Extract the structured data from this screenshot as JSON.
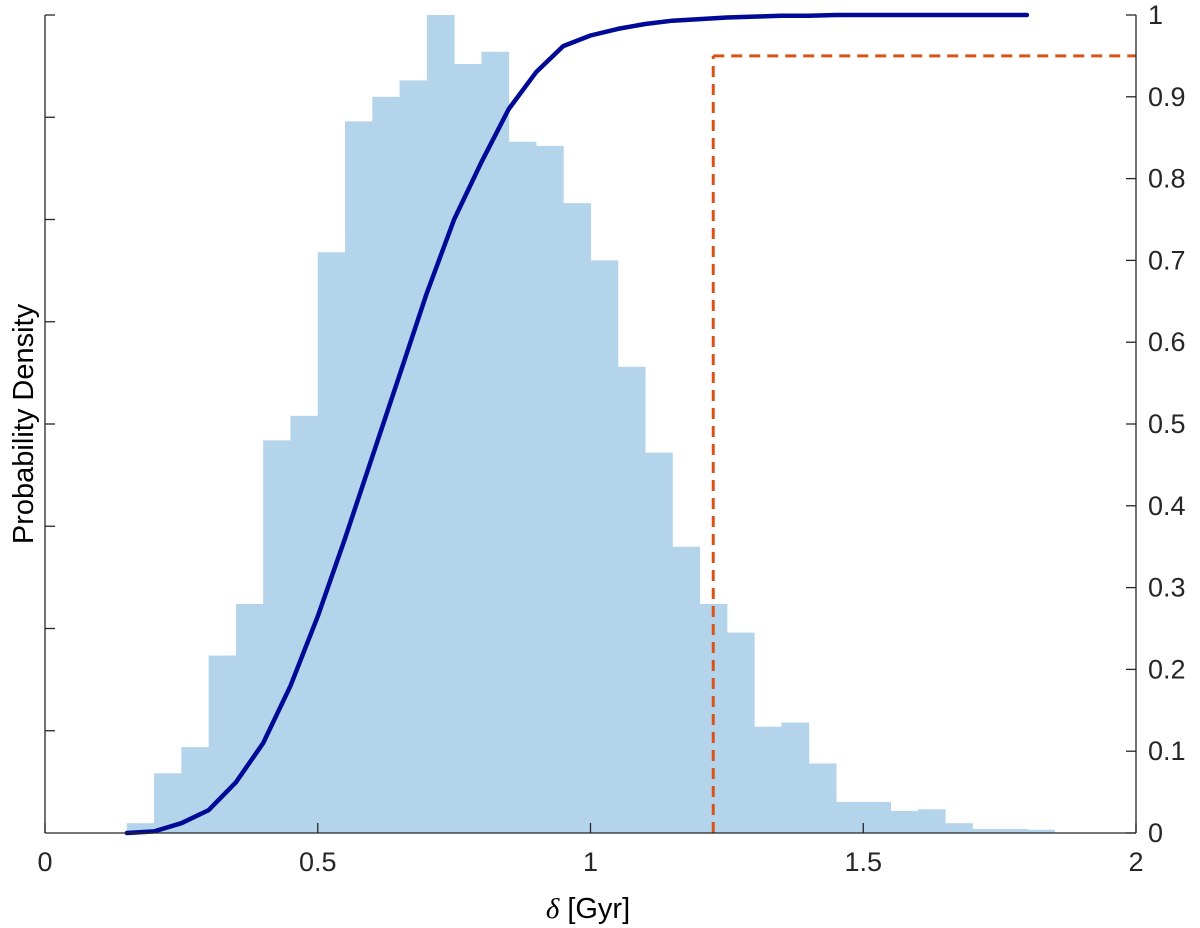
{
  "chart_data": {
    "type": "bar",
    "title": "",
    "xlabel": "δ [Gyr]",
    "xlabel_symbol": "δ",
    "xlabel_units": "[Gyr]",
    "ylabel_left": "Probability Density",
    "ylabel_right": "",
    "xlim": [
      0,
      2
    ],
    "ylim_right": [
      0,
      1
    ],
    "xticks": [
      "0",
      "0.5",
      "1",
      "1.5",
      "2"
    ],
    "xtick_values": [
      0,
      0.5,
      1,
      1.5,
      2
    ],
    "yticks_right": [
      "0",
      "0.1",
      "0.2",
      "0.3",
      "0.4",
      "0.5",
      "0.6",
      "0.7",
      "0.8",
      "0.9",
      "1"
    ],
    "ytick_right_values": [
      0,
      0.1,
      0.2,
      0.3,
      0.4,
      0.5,
      0.6,
      0.7,
      0.8,
      0.9,
      1
    ],
    "left_axis_minor_ticks_fraction": [
      0.125,
      0.25,
      0.375,
      0.5,
      0.625,
      0.75,
      0.875,
      1.0
    ],
    "histogram": {
      "name": "",
      "color": "#b3d4eb",
      "bin_edges": [
        0.15,
        0.2,
        0.25,
        0.3,
        0.35,
        0.4,
        0.45,
        0.5,
        0.55,
        0.6,
        0.65,
        0.7,
        0.75,
        0.8,
        0.85,
        0.9,
        0.95,
        1.0,
        1.05,
        1.1,
        1.15,
        1.2,
        1.25,
        1.3,
        1.35,
        1.4,
        1.45,
        1.5,
        1.55,
        1.6,
        1.65,
        1.7,
        1.75,
        1.8,
        1.85
      ],
      "relative_heights": [
        0.012,
        0.073,
        0.105,
        0.217,
        0.28,
        0.48,
        0.51,
        0.71,
        0.87,
        0.9,
        0.92,
        1.0,
        0.94,
        0.955,
        0.845,
        0.84,
        0.77,
        0.7,
        0.57,
        0.465,
        0.35,
        0.28,
        0.245,
        0.13,
        0.135,
        0.085,
        0.038,
        0.038,
        0.027,
        0.029,
        0.012,
        0.005,
        0.005,
        0.004
      ]
    },
    "cdf_line": {
      "name": "",
      "color": "#000a96",
      "x": [
        0.15,
        0.2,
        0.25,
        0.3,
        0.35,
        0.4,
        0.45,
        0.5,
        0.55,
        0.6,
        0.65,
        0.7,
        0.75,
        0.8,
        0.85,
        0.9,
        0.95,
        1.0,
        1.05,
        1.1,
        1.15,
        1.2,
        1.25,
        1.3,
        1.35,
        1.4,
        1.45,
        1.5,
        1.55,
        1.6,
        1.65,
        1.7,
        1.75,
        1.8
      ],
      "y": [
        0.0,
        0.002,
        0.012,
        0.028,
        0.062,
        0.11,
        0.18,
        0.265,
        0.36,
        0.46,
        0.56,
        0.66,
        0.75,
        0.82,
        0.885,
        0.93,
        0.962,
        0.975,
        0.983,
        0.989,
        0.993,
        0.995,
        0.997,
        0.998,
        0.999,
        0.999,
        1.0,
        1.0,
        1.0,
        1.0,
        1.0,
        1.0,
        1.0,
        1.0
      ]
    },
    "threshold": {
      "color": "#d95319",
      "x": 1.225,
      "y": 0.95,
      "style": "dashed"
    },
    "grid": false,
    "legend": "none"
  }
}
